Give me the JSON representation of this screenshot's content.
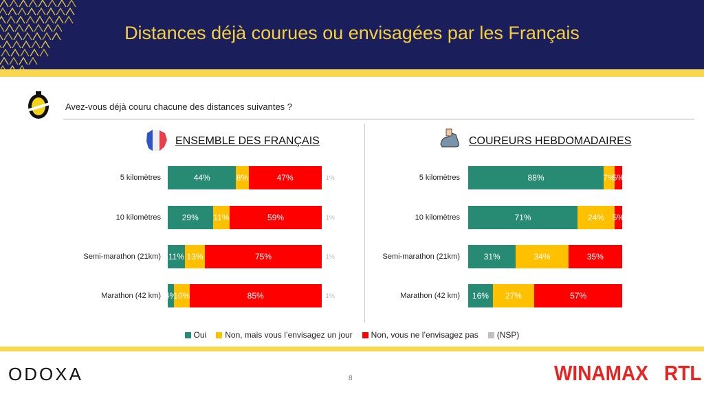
{
  "header": {
    "title": "Distances déjà courues ou envisagées par les Français"
  },
  "question": "Avez-vous déjà couru chacune des distances suivantes ?",
  "colors": {
    "oui": "#278a72",
    "envisage": "#ffc000",
    "pas": "#ff0000",
    "nsp": "#c0c0c0"
  },
  "chart_data": [
    {
      "type": "bar",
      "stacked": true,
      "orientation": "horizontal",
      "title": "ENSEMBLE DES FRANÇAIS",
      "categories": [
        "5 kilomètres",
        "10 kilomètres",
        "Semi-marathon (21km)",
        "Marathon (42 km)"
      ],
      "series": [
        {
          "name": "Oui",
          "values": [
            44,
            29,
            11,
            4
          ]
        },
        {
          "name": "Non, mais vous l'envisagez un jour",
          "values": [
            8,
            11,
            13,
            10
          ]
        },
        {
          "name": "Non, vous ne l'envisagez pas",
          "values": [
            47,
            59,
            75,
            85
          ]
        },
        {
          "name": "(NSP)",
          "values": [
            1,
            1,
            1,
            1
          ]
        }
      ],
      "labels": [
        [
          "44%",
          "8%",
          "47%",
          "1%"
        ],
        [
          "29%",
          "11%",
          "59%",
          "1%"
        ],
        [
          "11%",
          "13%",
          "75%",
          "1%"
        ],
        [
          "4%",
          "10%",
          "85%",
          "1%"
        ]
      ]
    },
    {
      "type": "bar",
      "stacked": true,
      "orientation": "horizontal",
      "title": "COUREURS HEBDOMADAIRES",
      "categories": [
        "5 kilomètres",
        "10 kilomètres",
        "Semi-marathon (21km)",
        "Marathon (42 km)"
      ],
      "series": [
        {
          "name": "Oui",
          "values": [
            88,
            71,
            31,
            16
          ]
        },
        {
          "name": "Non, mais vous l'envisagez un jour",
          "values": [
            7,
            24,
            34,
            27
          ]
        },
        {
          "name": "Non, vous ne l'envisagez pas",
          "values": [
            5,
            5,
            35,
            57
          ]
        }
      ],
      "labels": [
        [
          "88%",
          "7%",
          "5%"
        ],
        [
          "71%",
          "24%",
          "5%"
        ],
        [
          "31%",
          "34%",
          "35%"
        ],
        [
          "16%",
          "27%",
          "57%"
        ]
      ]
    }
  ],
  "legend": [
    "Oui",
    "Non, mais vous l’envisagez un jour",
    "Non, vous ne l’envisagez pas",
    "(NSP)"
  ],
  "footer": {
    "odoxa": "ODOXA",
    "page": "8",
    "winamax": "WINAMAX",
    "rtl": "RTL"
  }
}
